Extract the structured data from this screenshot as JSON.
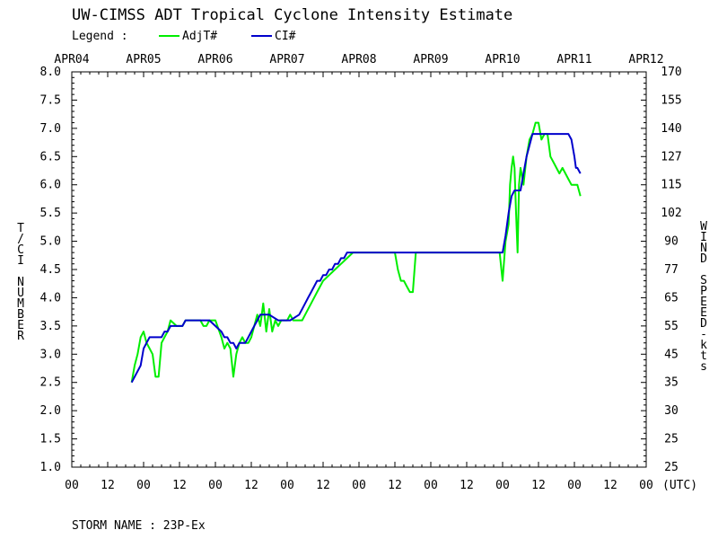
{
  "chart_data": {
    "type": "line",
    "title": "UW-CIMSS ADT Tropical Cyclone Intensity Estimate",
    "legend_label": "Legend :",
    "ylabel": "T/CI NUMBER",
    "ylabel_right": "WIND SPEED-kts",
    "xlabel_unit": "(UTC)",
    "ylim": [
      1.0,
      8.0
    ],
    "xlim_hours": [
      0,
      192
    ],
    "date_labels": [
      "APR04",
      "APR05",
      "APR06",
      "APR07",
      "APR08",
      "APR09",
      "APR10",
      "APR11",
      "APR12"
    ],
    "date_hours": [
      0,
      24,
      48,
      72,
      96,
      120,
      144,
      168,
      192
    ],
    "hour_labels": [
      "00",
      "12",
      "00",
      "12",
      "00",
      "12",
      "00",
      "12",
      "00",
      "12",
      "00",
      "12",
      "00",
      "12",
      "00",
      "12",
      "00"
    ],
    "hour_ticks": [
      0,
      12,
      24,
      36,
      48,
      60,
      72,
      84,
      96,
      108,
      120,
      132,
      144,
      156,
      168,
      180,
      192
    ],
    "y_ticks": [
      1.0,
      1.5,
      2.0,
      2.5,
      3.0,
      3.5,
      4.0,
      4.5,
      5.0,
      5.5,
      6.0,
      6.5,
      7.0,
      7.5,
      8.0
    ],
    "y_tick_labels": [
      "1.0",
      "1.5",
      "2.0",
      "2.5",
      "3.0",
      "3.5",
      "4.0",
      "4.5",
      "5.0",
      "5.5",
      "6.0",
      "6.5",
      "7.0",
      "7.5",
      "8.0"
    ],
    "wind_labels": [
      "25",
      "25",
      "30",
      "35",
      "45",
      "55",
      "65",
      "77",
      "90",
      "102",
      "115",
      "127",
      "140",
      "155",
      "170"
    ],
    "series": [
      {
        "name": "AdjT#",
        "color": "#00ee00",
        "x": [
          20,
          21,
          22,
          23,
          24,
          25,
          26,
          27,
          28,
          29,
          30,
          31,
          32,
          33,
          35,
          37,
          38,
          39,
          40,
          41,
          42,
          43,
          44,
          45,
          46,
          48,
          50,
          51,
          52,
          53,
          54,
          55,
          56,
          57,
          58,
          59,
          60,
          61,
          62,
          63,
          64,
          65,
          66,
          67,
          68,
          69,
          70,
          71,
          72,
          73,
          74,
          75,
          76,
          77,
          78,
          80,
          82,
          84,
          86,
          88,
          90,
          92,
          94,
          96,
          98,
          100,
          102,
          104,
          106,
          108,
          109,
          110,
          111,
          112,
          113,
          114,
          115,
          116,
          117,
          118,
          120,
          124,
          128,
          132,
          136,
          140,
          143,
          144,
          145,
          146,
          146.5,
          147,
          147.5,
          148,
          148.5,
          149,
          149.5,
          150,
          151,
          152,
          153,
          154,
          155,
          156,
          157,
          158,
          159,
          160,
          161,
          162,
          163,
          164,
          165,
          166,
          167,
          168,
          169,
          170
        ],
        "values": [
          2.5,
          2.8,
          3.0,
          3.3,
          3.4,
          3.2,
          3.1,
          3.0,
          2.6,
          2.6,
          3.2,
          3.3,
          3.4,
          3.6,
          3.5,
          3.5,
          3.6,
          3.6,
          3.6,
          3.6,
          3.6,
          3.6,
          3.5,
          3.5,
          3.6,
          3.6,
          3.3,
          3.1,
          3.2,
          3.1,
          2.6,
          3.0,
          3.2,
          3.3,
          3.2,
          3.2,
          3.3,
          3.5,
          3.7,
          3.5,
          3.9,
          3.4,
          3.8,
          3.4,
          3.6,
          3.5,
          3.6,
          3.6,
          3.6,
          3.7,
          3.6,
          3.6,
          3.6,
          3.6,
          3.7,
          3.9,
          4.1,
          4.3,
          4.4,
          4.5,
          4.6,
          4.7,
          4.8,
          4.8,
          4.8,
          4.8,
          4.8,
          4.8,
          4.8,
          4.8,
          4.5,
          4.3,
          4.3,
          4.2,
          4.1,
          4.1,
          4.8,
          4.8,
          4.8,
          4.8,
          4.8,
          4.8,
          4.8,
          4.8,
          4.8,
          4.8,
          4.8,
          4.3,
          5.0,
          5.3,
          6.0,
          6.3,
          6.5,
          6.3,
          5.5,
          4.8,
          6.0,
          6.3,
          6.0,
          6.5,
          6.8,
          6.9,
          7.1,
          7.1,
          6.8,
          6.9,
          6.9,
          6.5,
          6.4,
          6.3,
          6.2,
          6.3,
          6.2,
          6.1,
          6.0,
          6.0,
          6.0,
          5.8
        ]
      },
      {
        "name": "CI#",
        "color": "#0000cc",
        "x": [
          20,
          23,
          24,
          25,
          26,
          30,
          31,
          32,
          33,
          37,
          38,
          46,
          48,
          50,
          51,
          52,
          53,
          54,
          55,
          56,
          58,
          59,
          60,
          61,
          62,
          63,
          66,
          69,
          70,
          71,
          72,
          73,
          76,
          77,
          78,
          79,
          80,
          81,
          82,
          83,
          84,
          85,
          86,
          87,
          88,
          89,
          90,
          91,
          92,
          93,
          94,
          95,
          96,
          144,
          145,
          146,
          147,
          148,
          150,
          151,
          152,
          153,
          154,
          155,
          156,
          157,
          158,
          166,
          167,
          168,
          168.5,
          169,
          170
        ],
        "values": [
          2.5,
          2.8,
          3.1,
          3.2,
          3.3,
          3.3,
          3.4,
          3.4,
          3.5,
          3.5,
          3.6,
          3.6,
          3.5,
          3.4,
          3.3,
          3.3,
          3.2,
          3.2,
          3.1,
          3.2,
          3.2,
          3.3,
          3.4,
          3.5,
          3.6,
          3.7,
          3.7,
          3.6,
          3.6,
          3.6,
          3.6,
          3.6,
          3.7,
          3.8,
          3.9,
          4.0,
          4.1,
          4.2,
          4.3,
          4.3,
          4.4,
          4.4,
          4.5,
          4.5,
          4.6,
          4.6,
          4.7,
          4.7,
          4.8,
          4.8,
          4.8,
          4.8,
          4.8,
          4.8,
          5.1,
          5.5,
          5.8,
          5.9,
          5.9,
          6.2,
          6.5,
          6.7,
          6.9,
          6.9,
          6.9,
          6.9,
          6.9,
          6.9,
          6.8,
          6.5,
          6.3,
          6.3,
          6.2
        ]
      }
    ],
    "storm_label": "STORM NAME : 23P-Ex"
  }
}
